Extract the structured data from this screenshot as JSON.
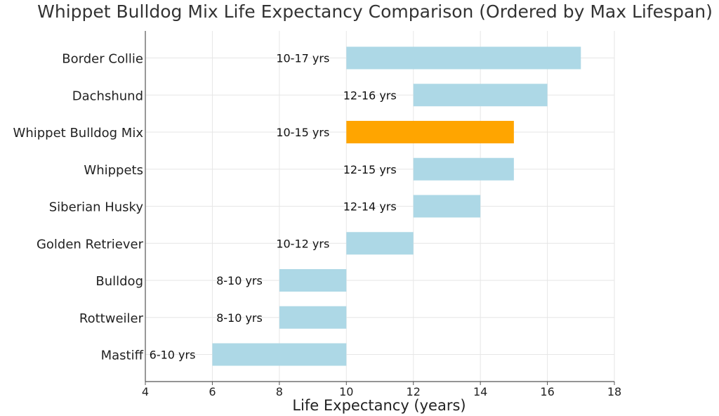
{
  "chart_data": {
    "type": "bar",
    "orientation": "horizontal-range",
    "title": "Whippet Bulldog Mix Life Expectancy Comparison (Ordered by Max Lifespan)",
    "xlabel": "Life Expectancy (years)",
    "ylabel": "",
    "xlim": [
      4,
      18
    ],
    "x_ticks": [
      4,
      6,
      8,
      10,
      12,
      14,
      16,
      18
    ],
    "grid": true,
    "colors": {
      "default": "#add8e6",
      "highlight": "#ffa500"
    },
    "categories": [
      "Border Collie",
      "Dachshund",
      "Whippet Bulldog Mix",
      "Whippets",
      "Siberian Husky",
      "Golden Retriever",
      "Bulldog",
      "Rottweiler",
      "Mastiff"
    ],
    "ranges": [
      {
        "min": 10,
        "max": 17,
        "label": "10-17 yrs",
        "highlight": false
      },
      {
        "min": 12,
        "max": 16,
        "label": "12-16 yrs",
        "highlight": false
      },
      {
        "min": 10,
        "max": 15,
        "label": "10-15 yrs",
        "highlight": true
      },
      {
        "min": 12,
        "max": 15,
        "label": "12-15 yrs",
        "highlight": false
      },
      {
        "min": 12,
        "max": 14,
        "label": "12-14 yrs",
        "highlight": false
      },
      {
        "min": 10,
        "max": 12,
        "label": "10-12 yrs",
        "highlight": false
      },
      {
        "min": 8,
        "max": 10,
        "label": "8-10 yrs",
        "highlight": false
      },
      {
        "min": 8,
        "max": 10,
        "label": "8-10 yrs",
        "highlight": false
      },
      {
        "min": 6,
        "max": 10,
        "label": "6-10 yrs",
        "highlight": false
      }
    ]
  }
}
